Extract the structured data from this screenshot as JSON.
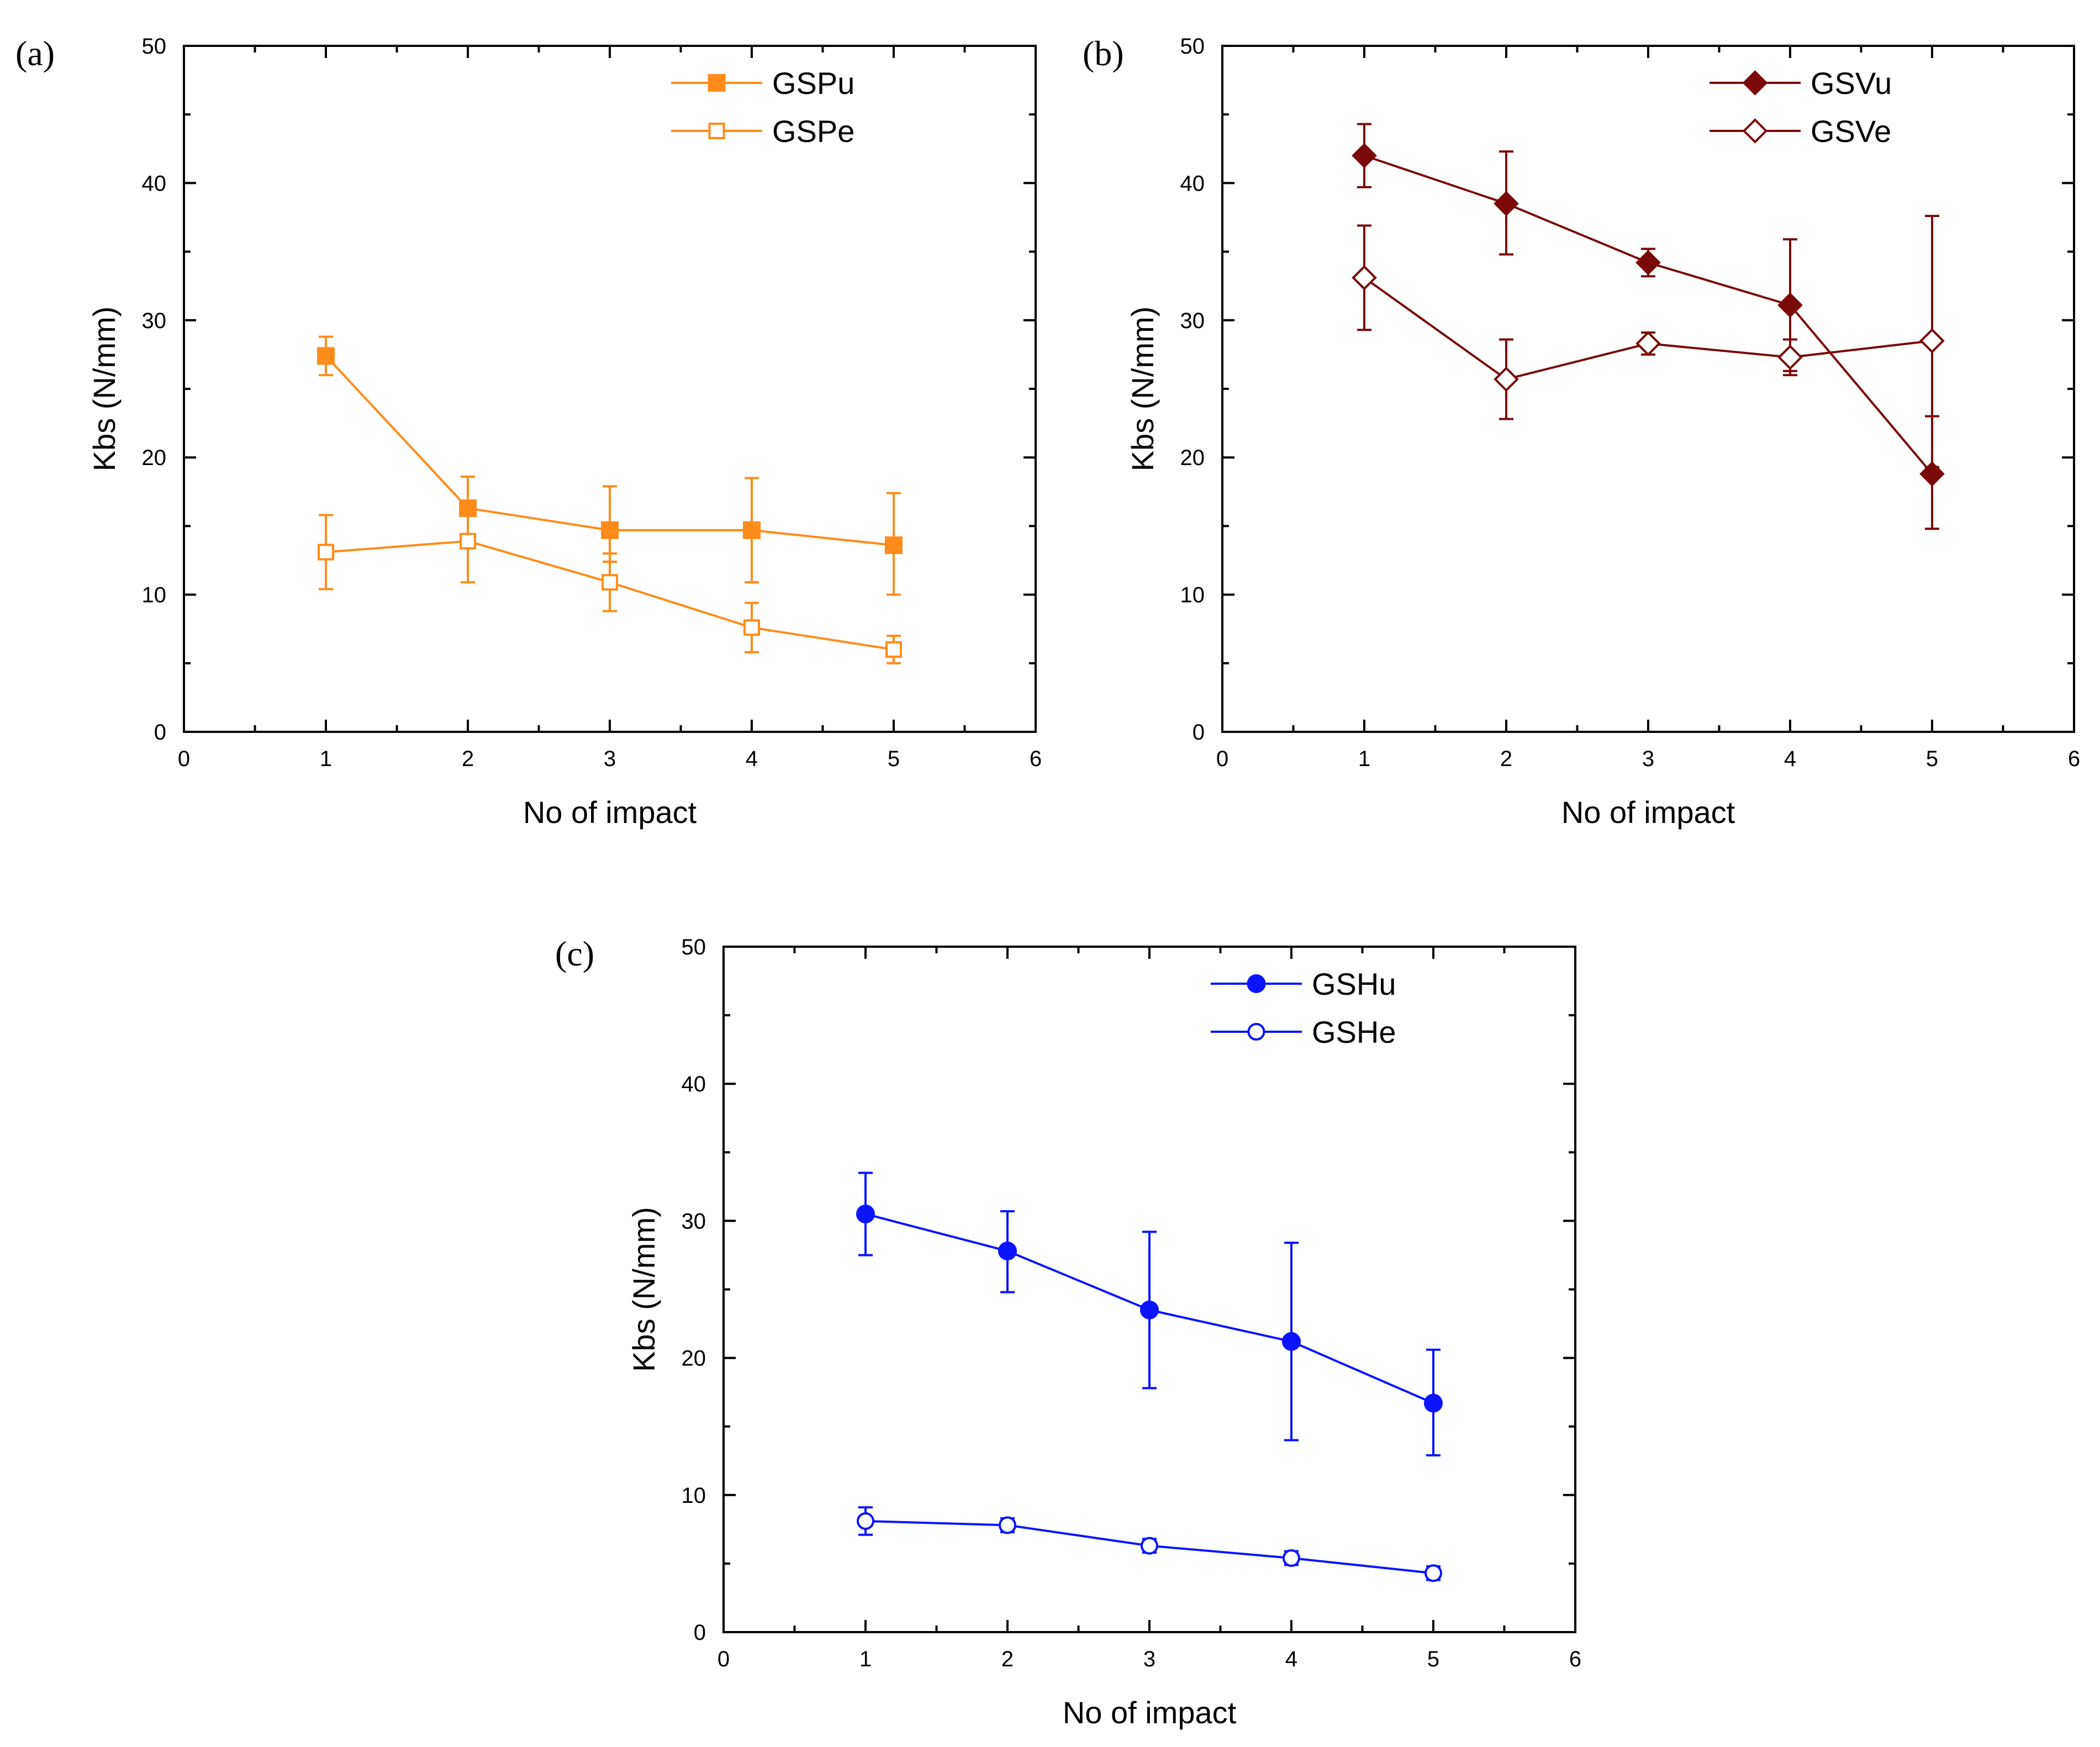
{
  "chart_data": [
    {
      "type": "line",
      "panel_label": "(a)",
      "xlabel": "No of impact",
      "ylabel": "Kbs (N/mm)",
      "xlim": [
        0,
        6
      ],
      "ylim": [
        0,
        50
      ],
      "xticks": [
        0,
        1,
        2,
        3,
        4,
        5,
        6
      ],
      "yticks": [
        0,
        10,
        20,
        30,
        40,
        50
      ],
      "legend_position": "top-right",
      "series": [
        {
          "name": "GSPu",
          "marker": "square",
          "filled": true,
          "color": "#ff8c1a",
          "x": [
            1,
            2,
            3,
            4,
            5
          ],
          "y": [
            27.4,
            16.3,
            14.7,
            14.7,
            13.6
          ],
          "err_low": [
            1.4,
            2.3,
            2.3,
            3.8,
            3.6
          ],
          "err_high": [
            1.4,
            2.3,
            3.2,
            3.8,
            3.8
          ]
        },
        {
          "name": "GSPe",
          "marker": "square",
          "filled": false,
          "color": "#ff8c1a",
          "x": [
            1,
            2,
            3,
            4,
            5
          ],
          "y": [
            13.1,
            13.9,
            10.9,
            7.6,
            6.0
          ],
          "err_low": [
            2.7,
            3.0,
            2.1,
            1.8,
            1.0
          ],
          "err_high": [
            2.7,
            2.5,
            2.1,
            1.8,
            1.0
          ]
        }
      ]
    },
    {
      "type": "line",
      "panel_label": "(b)",
      "xlabel": "No of impact",
      "ylabel": "Kbs (N/mm)",
      "xlim": [
        0,
        6
      ],
      "ylim": [
        0,
        50
      ],
      "xticks": [
        0,
        1,
        2,
        3,
        4,
        5,
        6
      ],
      "yticks": [
        0,
        10,
        20,
        30,
        40,
        50
      ],
      "legend_position": "top-right",
      "series": [
        {
          "name": "GSVu",
          "marker": "diamond",
          "filled": true,
          "color": "#7a0a0a",
          "x": [
            1,
            2,
            3,
            4,
            5
          ],
          "y": [
            42.0,
            38.5,
            34.2,
            31.1,
            18.8
          ],
          "err_low": [
            2.3,
            3.7,
            1.0,
            4.8,
            4.0
          ],
          "err_high": [
            2.3,
            3.8,
            1.0,
            4.8,
            4.2
          ]
        },
        {
          "name": "GSVe",
          "marker": "diamond",
          "filled": false,
          "color": "#7a0a0a",
          "x": [
            1,
            2,
            3,
            4,
            5
          ],
          "y": [
            33.1,
            25.7,
            28.3,
            27.3,
            28.5
          ],
          "err_low": [
            3.8,
            2.9,
            0.8,
            1.3,
            9.2
          ],
          "err_high": [
            3.8,
            2.9,
            0.8,
            1.3,
            9.1
          ]
        }
      ]
    },
    {
      "type": "line",
      "panel_label": "(c)",
      "xlabel": "No of impact",
      "ylabel": "Kbs (N/mm)",
      "xlim": [
        0,
        6
      ],
      "ylim": [
        0,
        50
      ],
      "xticks": [
        0,
        1,
        2,
        3,
        4,
        5,
        6
      ],
      "yticks": [
        0,
        10,
        20,
        30,
        40,
        50
      ],
      "legend_position": "top-right",
      "series": [
        {
          "name": "GSHu",
          "marker": "circle",
          "filled": true,
          "color": "#0a14ff",
          "x": [
            1,
            2,
            3,
            4,
            5
          ],
          "y": [
            30.5,
            27.8,
            23.5,
            21.2,
            16.7
          ],
          "err_low": [
            3.0,
            3.0,
            5.7,
            7.2,
            3.8
          ],
          "err_high": [
            3.0,
            2.9,
            5.7,
            7.2,
            3.9
          ]
        },
        {
          "name": "GSHe",
          "marker": "circle",
          "filled": false,
          "color": "#0a14ff",
          "x": [
            1,
            2,
            3,
            4,
            5
          ],
          "y": [
            8.1,
            7.8,
            6.3,
            5.4,
            4.3
          ],
          "err_low": [
            1.0,
            0.5,
            0.5,
            0.5,
            0.5
          ],
          "err_high": [
            1.0,
            0.5,
            0.5,
            0.5,
            0.5
          ]
        }
      ]
    }
  ]
}
